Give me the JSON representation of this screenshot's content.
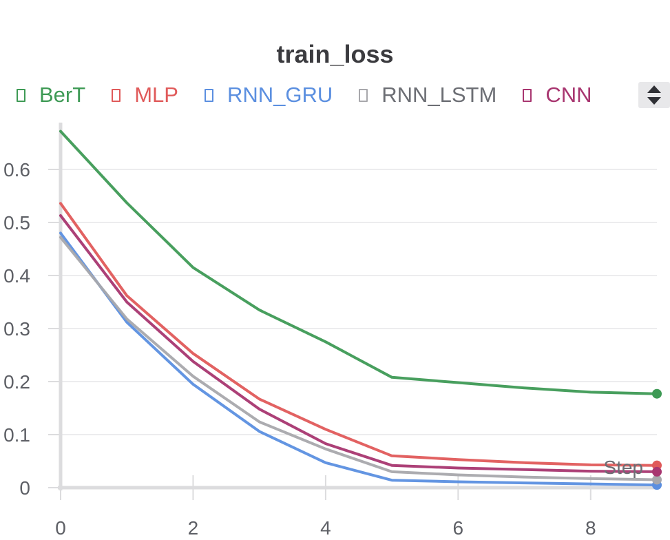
{
  "chart_data": {
    "type": "line",
    "title": "train_loss",
    "xlabel": "Step",
    "ylabel": "",
    "xlim": [
      0,
      9
    ],
    "ylim": [
      0,
      0.67
    ],
    "x": [
      0,
      1,
      2,
      3,
      4,
      5,
      6,
      7,
      8,
      9
    ],
    "x_ticks": [
      0,
      2,
      4,
      6,
      8
    ],
    "y_ticks": [
      0,
      0.1,
      0.2,
      0.3,
      0.4,
      0.5,
      0.6
    ],
    "y_tick_labels": [
      "0",
      "0.1",
      "0.2",
      "0.3",
      "0.4",
      "0.5",
      "0.6"
    ],
    "grid": true,
    "legend_position": "top",
    "series": [
      {
        "name": "BerT",
        "color": "#3e9a55",
        "values": [
          0.672,
          0.537,
          0.415,
          0.335,
          0.275,
          0.208,
          0.198,
          0.188,
          0.18,
          0.177
        ]
      },
      {
        "name": "MLP",
        "color": "#e05a5a",
        "values": [
          0.536,
          0.362,
          0.253,
          0.167,
          0.11,
          0.06,
          0.053,
          0.047,
          0.043,
          0.042
        ]
      },
      {
        "name": "RNN_GRU",
        "color": "#5b8fe0",
        "values": [
          0.48,
          0.312,
          0.195,
          0.106,
          0.047,
          0.014,
          0.011,
          0.009,
          0.007,
          0.005
        ]
      },
      {
        "name": "RNN_LSTM",
        "color": "#a8a8ac",
        "values": [
          0.472,
          0.318,
          0.21,
          0.124,
          0.073,
          0.03,
          0.024,
          0.02,
          0.017,
          0.015
        ]
      },
      {
        "name": "CNN",
        "color": "#a83670",
        "values": [
          0.513,
          0.35,
          0.238,
          0.148,
          0.083,
          0.042,
          0.037,
          0.034,
          0.031,
          0.03
        ]
      }
    ]
  },
  "legend": {
    "scroll_control": "up-down-arrows-icon"
  }
}
